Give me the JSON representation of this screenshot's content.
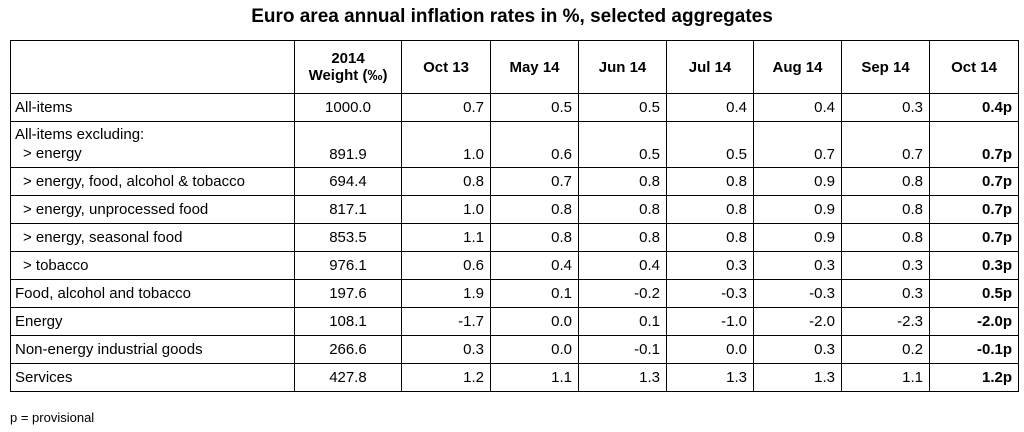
{
  "chart_data": {
    "type": "table",
    "title": "Euro area annual inflation rates in %, selected aggregates",
    "columns": [
      "",
      "2014 Weight (‰)",
      "Oct 13",
      "May 14",
      "Jun 14",
      "Jul 14",
      "Aug 14",
      "Sep 14",
      "Oct 14"
    ],
    "header_weight_line1": "2014",
    "header_weight_line2": "Weight (‰)",
    "group_label": "All-items excluding:",
    "rows": [
      {
        "label": "All-items",
        "weight": "1000.0",
        "values": [
          "0.7",
          "0.5",
          "0.5",
          "0.4",
          "0.4",
          "0.3",
          "0.4p"
        ]
      },
      {
        "label": "> energy",
        "weight": "891.9",
        "values": [
          "1.0",
          "0.6",
          "0.5",
          "0.5",
          "0.7",
          "0.7",
          "0.7p"
        ]
      },
      {
        "label": "> energy, food, alcohol & tobacco",
        "weight": "694.4",
        "values": [
          "0.8",
          "0.7",
          "0.8",
          "0.8",
          "0.9",
          "0.8",
          "0.7p"
        ]
      },
      {
        "label": "> energy, unprocessed food",
        "weight": "817.1",
        "values": [
          "1.0",
          "0.8",
          "0.8",
          "0.8",
          "0.9",
          "0.8",
          "0.7p"
        ]
      },
      {
        "label": "> energy, seasonal food",
        "weight": "853.5",
        "values": [
          "1.1",
          "0.8",
          "0.8",
          "0.8",
          "0.9",
          "0.8",
          "0.7p"
        ]
      },
      {
        "label": "> tobacco",
        "weight": "976.1",
        "values": [
          "0.6",
          "0.4",
          "0.4",
          "0.3",
          "0.3",
          "0.3",
          "0.3p"
        ]
      },
      {
        "label": "Food, alcohol and tobacco",
        "weight": "197.6",
        "values": [
          "1.9",
          "0.1",
          "-0.2",
          "-0.3",
          "-0.3",
          "0.3",
          "0.5p"
        ]
      },
      {
        "label": "Energy",
        "weight": "108.1",
        "values": [
          "-1.7",
          "0.0",
          "0.1",
          "-1.0",
          "-2.0",
          "-2.3",
          "-2.0p"
        ]
      },
      {
        "label": "Non-energy industrial goods",
        "weight": "266.6",
        "values": [
          "0.3",
          "0.0",
          "-0.1",
          "0.0",
          "0.3",
          "0.2",
          "-0.1p"
        ]
      },
      {
        "label": "Services",
        "weight": "427.8",
        "values": [
          "1.2",
          "1.1",
          "1.3",
          "1.3",
          "1.3",
          "1.1",
          "1.2p"
        ]
      }
    ],
    "footnote": "p = provisional"
  }
}
